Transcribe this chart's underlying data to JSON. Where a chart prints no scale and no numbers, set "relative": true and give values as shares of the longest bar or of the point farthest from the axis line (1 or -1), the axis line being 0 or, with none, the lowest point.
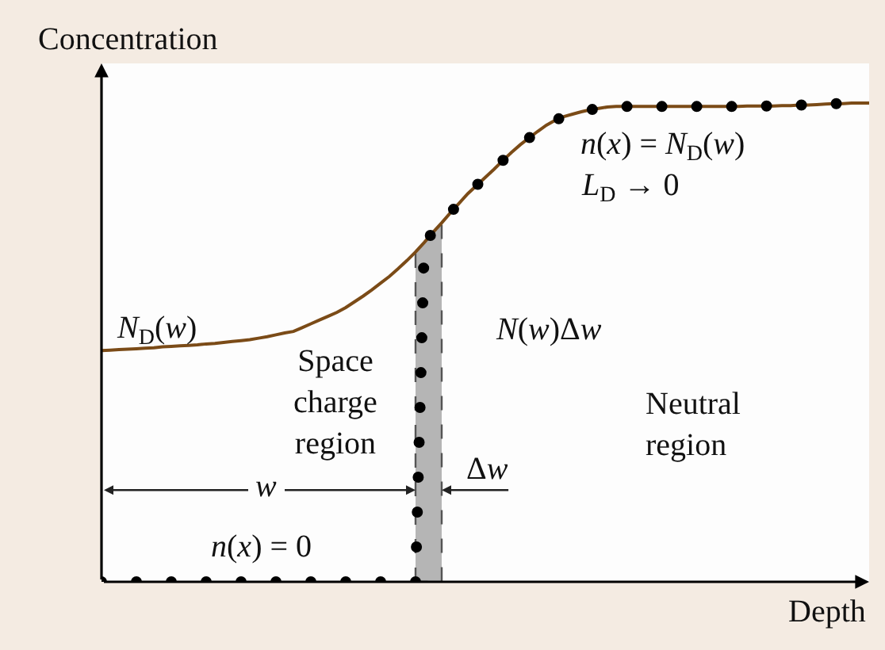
{
  "chart_data": {
    "type": "line",
    "relative": true,
    "xlabel": "Depth",
    "ylabel": "Concentration",
    "grid": false,
    "legend": false,
    "categories": [
      null,
      null,
      null,
      null,
      null,
      null,
      null,
      null,
      null,
      null,
      null,
      null,
      null,
      null,
      null,
      null,
      null,
      null,
      null,
      null,
      null,
      null,
      null,
      null,
      null,
      null,
      null,
      null,
      null,
      null,
      null,
      null,
      null,
      null,
      null,
      null,
      null,
      null,
      null,
      null,
      null,
      null,
      null,
      null,
      null,
      null,
      null,
      null,
      null,
      null,
      null,
      null,
      null,
      null,
      null,
      null,
      null,
      null,
      null,
      null,
      null,
      null,
      null,
      null,
      null,
      null,
      null,
      null,
      null,
      null,
      null,
      null,
      null,
      null,
      null,
      null,
      null,
      null,
      null,
      null,
      null,
      null,
      null,
      null,
      null,
      null,
      null,
      null,
      null
    ],
    "series": [
      {
        "type": "area",
        "color": "#b5b5b5",
        "values": [
          null,
          null,
          null,
          null,
          null,
          null,
          null,
          null,
          null,
          null,
          null,
          null,
          null,
          null,
          null,
          null,
          null,
          null,
          null,
          null,
          null,
          null,
          null,
          null,
          null,
          null,
          null,
          null,
          null,
          null,
          null,
          null,
          null,
          null,
          null,
          null,
          0.689,
          0.709,
          0.73,
          0.75,
          null,
          null,
          null,
          null,
          null,
          null,
          null,
          null,
          null,
          null,
          null,
          null,
          null,
          null,
          null,
          null,
          null,
          null,
          null,
          null,
          null,
          null,
          null,
          null,
          null,
          null,
          null,
          null,
          null,
          null,
          null,
          null,
          null,
          null,
          null,
          null,
          null,
          null,
          null,
          null,
          null,
          null,
          null,
          null,
          null,
          null,
          null,
          null,
          null
        ]
      },
      {
        "color": "#7b4b17",
        "values": [
          0.483,
          0.484,
          0.485,
          0.486,
          0.487,
          0.488,
          0.489,
          0.491,
          0.492,
          0.493,
          0.494,
          0.495,
          0.497,
          0.498,
          0.5,
          0.502,
          0.504,
          0.506,
          0.509,
          0.512,
          0.516,
          0.52,
          0.523,
          0.531,
          0.539,
          0.547,
          0.555,
          0.563,
          0.573,
          0.585,
          0.597,
          0.61,
          0.624,
          0.638,
          0.654,
          0.671,
          0.689,
          0.709,
          0.73,
          0.75,
          0.771,
          0.791,
          0.811,
          0.828,
          0.845,
          0.862,
          0.88,
          0.897,
          0.913,
          0.927,
          0.941,
          0.954,
          0.964,
          0.972,
          0.977,
          0.982,
          0.986,
          0.989,
          0.992,
          0.993,
          0.993,
          0.993,
          0.993,
          0.993,
          0.993,
          0.993,
          0.993,
          0.993,
          0.993,
          0.993,
          0.993,
          0.993,
          0.993,
          0.993,
          0.994,
          0.994,
          0.994,
          0.994,
          0.995,
          0.995,
          0.996,
          0.996,
          0.997,
          0.998,
          0.999,
          0.999,
          1,
          1,
          1
        ]
      },
      {
        "color": "#000000",
        "line_style": "dotted",
        "values": [
          0,
          0,
          0,
          0,
          0,
          0,
          0,
          0,
          0,
          0,
          0,
          0,
          0,
          0,
          0,
          0,
          0,
          0,
          0,
          0,
          0,
          0,
          0,
          0,
          0,
          0,
          0,
          0,
          0,
          0,
          0,
          0,
          0,
          0,
          0,
          0,
          0,
          0.709,
          0.73,
          0.75,
          0.771,
          0.791,
          0.811,
          0.828,
          0.845,
          0.862,
          0.88,
          0.897,
          0.913,
          0.927,
          0.941,
          0.954,
          0.964,
          0.972,
          0.977,
          0.982,
          0.986,
          0.989,
          0.992,
          0.993,
          0.993,
          0.993,
          0.993,
          0.993,
          0.993,
          0.993,
          0.993,
          0.993,
          0.993,
          0.993,
          0.993,
          0.993,
          0.993,
          0.993,
          0.994,
          0.994,
          0.994,
          0.994,
          0.995,
          0.995,
          0.996,
          0.996,
          0.997,
          0.998,
          0.999,
          0.999,
          1,
          null,
          null
        ]
      }
    ],
    "annotations": [
      "N$_{D}$(w)",
      "Space\ncharge\nregion",
      "w",
      "Δw",
      "n(x) = 0",
      "N(w)Δw",
      "Neutral\nregion",
      "n(x) = N$_{D}$(w)",
      "L$_{D}$ → 0"
    ]
  }
}
